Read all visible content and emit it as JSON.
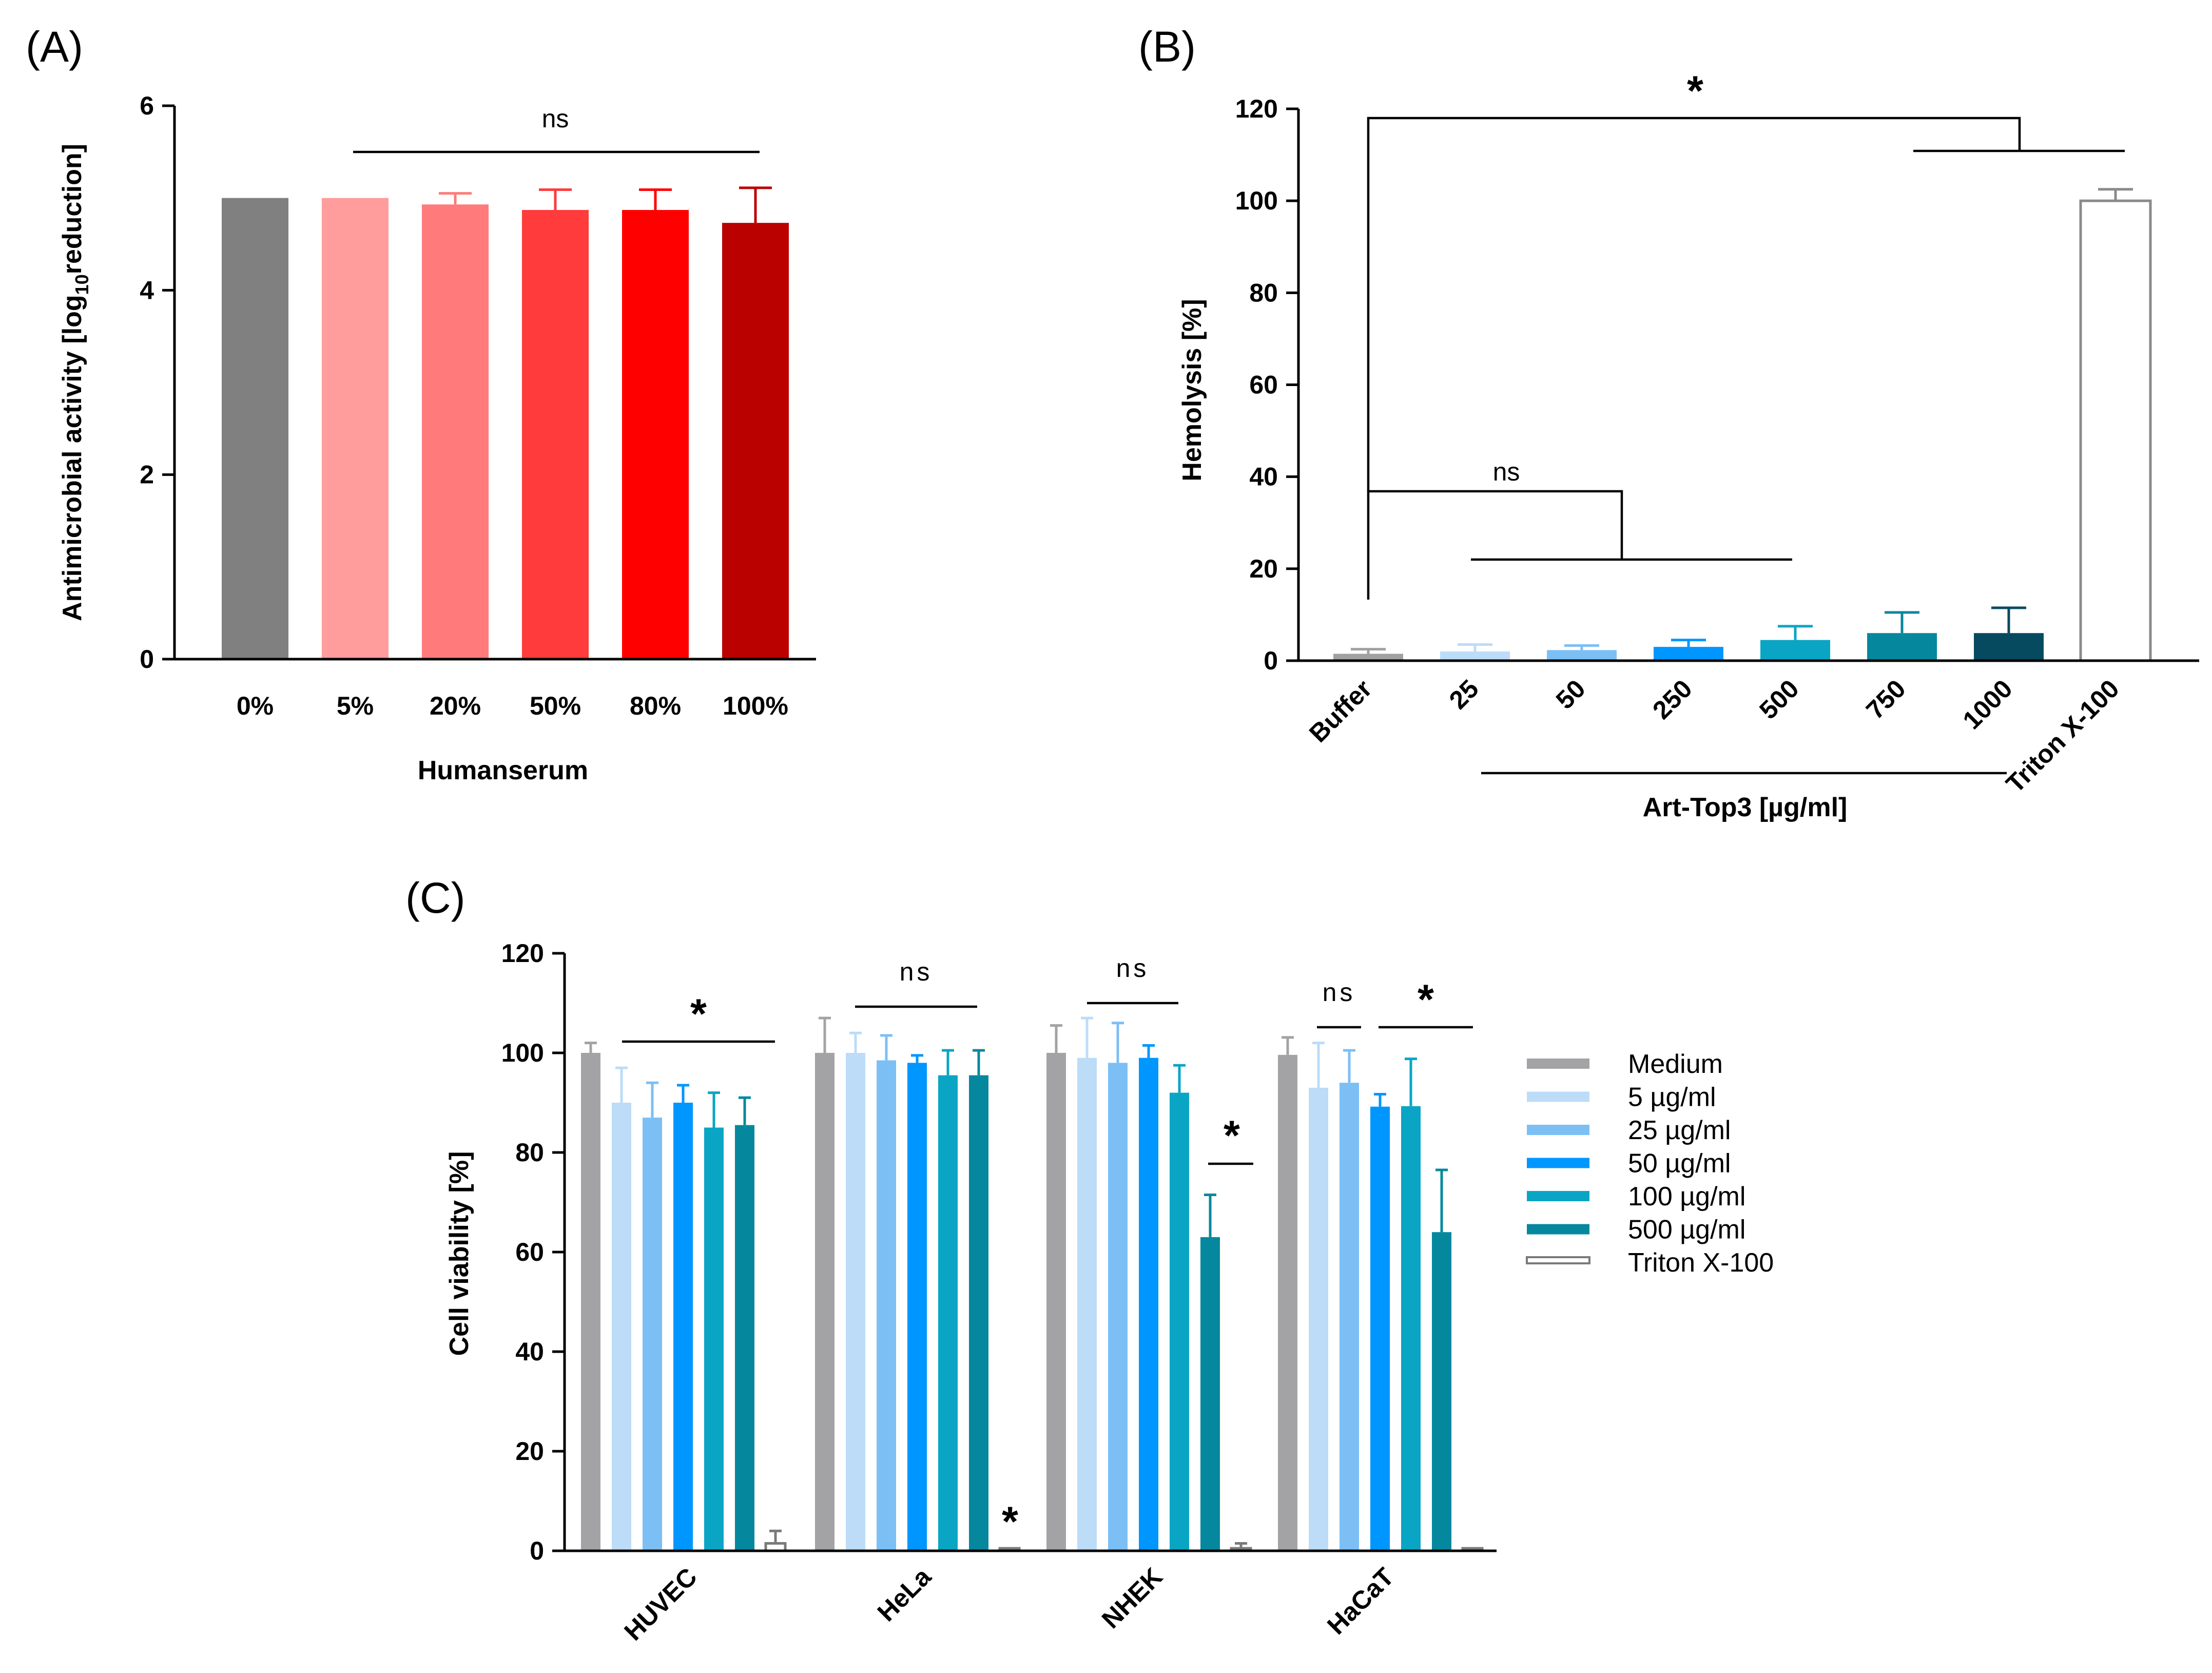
{
  "chart_data": [
    {
      "panel": "(A)",
      "type": "bar",
      "categories": [
        "0%",
        "5%",
        "20%",
        "50%",
        "80%",
        "100%"
      ],
      "values": [
        5.0,
        5.0,
        4.93,
        4.87,
        4.87,
        4.73
      ],
      "errors": [
        0,
        0,
        0.12,
        0.22,
        0.22,
        0.38
      ],
      "colors": [
        "#808080",
        "#ff9c9c",
        "#ff7b7b",
        "#ff3b3b",
        "#ff0000",
        "#bb0000"
      ],
      "xlabel": "Humanserum",
      "ylabel": "Antimicrobial activity [log10reduction]",
      "ylabel_parts": {
        "pre": "Antimicrobial activity [log",
        "sub": "10",
        "post": "reduction]"
      },
      "ylim": [
        0,
        6
      ],
      "yticks": [
        "0",
        "2",
        "4",
        "6"
      ],
      "annotations": [
        {
          "text": "ns",
          "from": "5%",
          "to": "100%"
        }
      ]
    },
    {
      "panel": "(B)",
      "type": "bar",
      "categories": [
        "Buffer",
        "25",
        "50",
        "250",
        "500",
        "750",
        "1000",
        "Triton X-100"
      ],
      "values": [
        1.5,
        2.0,
        2.3,
        3.0,
        4.5,
        6.0,
        6.0,
        100
      ],
      "errors": [
        1.0,
        1.5,
        1.0,
        1.5,
        3.0,
        4.5,
        5.5,
        2.5
      ],
      "colors": [
        "#a0a0a0",
        "#bcdcf8",
        "#7cbff5",
        "#0096ff",
        "#0aa5c4",
        "#05889e",
        "#064a60",
        "#ffffff"
      ],
      "group_label": "Art-Top3 [µg/ml]",
      "ylabel": "Hemolysis [%]",
      "ylim": [
        0,
        120
      ],
      "yticks": [
        "0",
        "20",
        "40",
        "60",
        "80",
        "100",
        "120"
      ],
      "annotations": [
        {
          "text": "ns"
        },
        {
          "text": "*"
        }
      ]
    },
    {
      "panel": "(C)",
      "type": "bar",
      "categories": [
        "HUVEC",
        "HeLa",
        "NHEK",
        "HaCaT"
      ],
      "ylabel": "Cell viability [%]",
      "ylim": [
        0,
        120
      ],
      "yticks": [
        "0",
        "20",
        "40",
        "60",
        "80",
        "100",
        "120"
      ],
      "series": [
        {
          "name": "Medium",
          "color": "#a3a3a6",
          "values": [
            100,
            100,
            100,
            99.6
          ],
          "errors": [
            2,
            7,
            5.5,
            3.5
          ]
        },
        {
          "name": "5 µg/ml",
          "color": "#bcdcf8",
          "values": [
            90,
            100,
            99,
            93
          ],
          "errors": [
            7,
            4,
            8,
            9
          ]
        },
        {
          "name": "25 µg/ml",
          "color": "#7cbff5",
          "values": [
            87,
            98.5,
            98,
            94
          ],
          "errors": [
            7,
            5,
            8,
            6.5
          ]
        },
        {
          "name": "50 µg/ml",
          "color": "#0096ff",
          "values": [
            90,
            98,
            99,
            89.2
          ],
          "errors": [
            3.5,
            1.5,
            2.5,
            2.5
          ]
        },
        {
          "name": "100 µg/ml",
          "color": "#0aa5c4",
          "values": [
            85,
            95.5,
            92,
            89.3
          ],
          "errors": [
            7,
            5,
            5.5,
            9.5
          ]
        },
        {
          "name": "500 µg/ml",
          "color": "#05889e",
          "values": [
            85.5,
            95.5,
            63,
            64
          ],
          "errors": [
            5.5,
            5,
            8.5,
            12.5
          ]
        },
        {
          "name": "Triton X-100",
          "color": "#ffffff",
          "values": [
            1.5,
            0.5,
            0.5,
            0.5
          ],
          "errors": [
            2.5,
            0,
            1,
            0
          ]
        }
      ],
      "annotations": [
        {
          "text": "*",
          "group": "HUVEC"
        },
        {
          "text": "ns",
          "group": "HeLa"
        },
        {
          "text": "*",
          "group": "HeLa"
        },
        {
          "text": "ns",
          "group": "NHEK"
        },
        {
          "text": "*",
          "group": "NHEK"
        },
        {
          "text": "ns",
          "group": "HaCaT"
        },
        {
          "text": "*",
          "group": "HaCaT"
        }
      ]
    }
  ]
}
